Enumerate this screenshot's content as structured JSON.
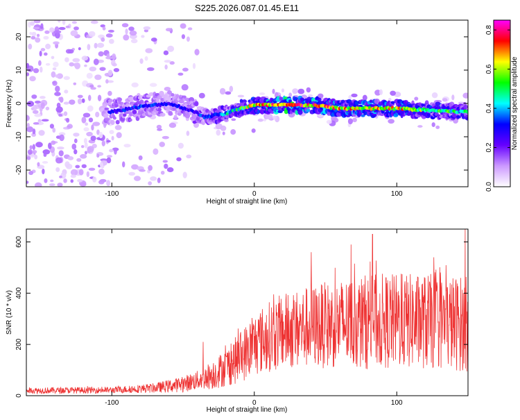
{
  "chart_data": [
    {
      "type": "heatmap",
      "title": "S225.2026.087.01.45.E11",
      "xlabel": "Height of straight line (km)",
      "ylabel": "Frequency (Hz)",
      "xlim": [
        -160,
        150
      ],
      "ylim": [
        -25,
        25
      ],
      "xticks": [
        -100,
        0,
        100
      ],
      "yticks": [
        -20,
        -10,
        0,
        10,
        20
      ],
      "colorbar": {
        "label": "Normalized spectral amplitude",
        "range": [
          0,
          0.85
        ],
        "ticks": [
          0.0,
          0.2,
          0.4,
          0.6,
          0.8
        ],
        "colormap": [
          "#ffffff",
          "#cc99ff",
          "#6600ff",
          "#0000ff",
          "#00ffff",
          "#00ff00",
          "#ffff00",
          "#ff0000",
          "#ff00ff"
        ]
      },
      "ridge": {
        "description": "frequency of peak amplitude vs height",
        "x": [
          -100,
          -80,
          -60,
          -45,
          -35,
          -20,
          -10,
          0,
          20,
          40,
          60,
          80,
          100,
          120,
          145
        ],
        "y": [
          -2.5,
          -1,
          0,
          -2,
          -4,
          -3,
          -1.5,
          -0.5,
          -0.5,
          -0.5,
          -1.5,
          -1.5,
          -1.5,
          -2,
          -2.5
        ],
        "peak_amplitude": [
          0.3,
          0.35,
          0.3,
          0.3,
          0.35,
          0.45,
          0.55,
          0.7,
          0.85,
          0.75,
          0.7,
          0.65,
          0.7,
          0.6,
          0.5
        ]
      }
    },
    {
      "type": "line",
      "xlabel": "Height of straight line (km)",
      "ylabel": "SNR (10 * v/v)",
      "xlim": [
        -160,
        150
      ],
      "ylim": [
        0,
        650
      ],
      "xticks": [
        -100,
        0,
        100
      ],
      "yticks": [
        0,
        200,
        400,
        600
      ],
      "series": [
        {
          "name": "SNR",
          "color": "#ee3333",
          "envelope_x": [
            -160,
            -100,
            -70,
            -50,
            -40,
            -30,
            -20,
            -10,
            0,
            10,
            20,
            40,
            60,
            80,
            100,
            120,
            150
          ],
          "envelope_mean": [
            20,
            22,
            30,
            45,
            60,
            80,
            110,
            150,
            200,
            230,
            250,
            270,
            280,
            290,
            290,
            290,
            280
          ],
          "envelope_spread": [
            10,
            10,
            15,
            25,
            30,
            45,
            60,
            80,
            100,
            110,
            120,
            130,
            140,
            150,
            150,
            150,
            150
          ],
          "peaks_x": [
            -36,
            40,
            68,
            83,
            126,
            148
          ],
          "peaks_y": [
            210,
            560,
            590,
            630,
            540,
            650
          ]
        }
      ]
    }
  ]
}
